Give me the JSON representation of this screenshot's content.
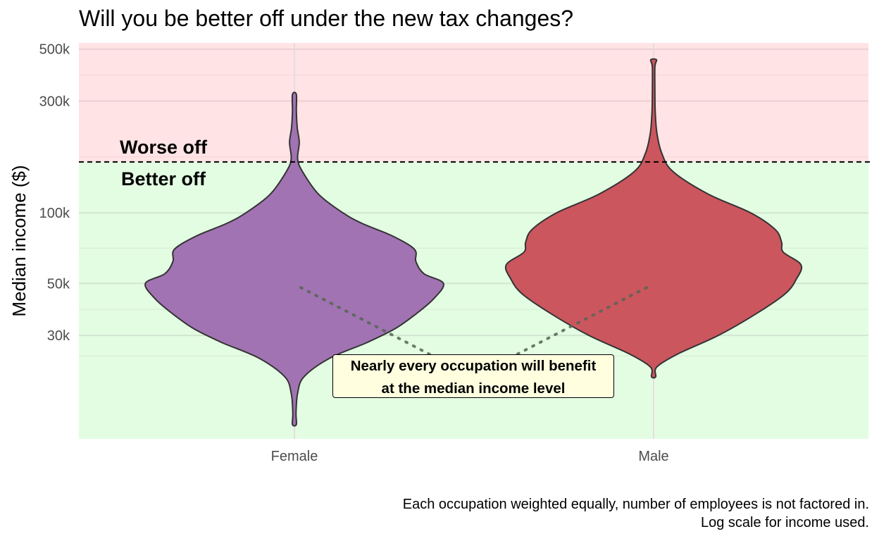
{
  "title": "Will you be better off under the new tax changes?",
  "caption": {
    "line1": "Each occupation weighted equally, number of employees is not factored in.",
    "line2": "Log scale for income used."
  },
  "annotation": {
    "line1": "Nearly every occupation will benefit",
    "line2": "at the median income level"
  },
  "region_labels": {
    "worse": "Worse off",
    "better": "Better off"
  },
  "colors": {
    "worse_region": "#ffe3e5",
    "better_region": "#e3fde3",
    "female": "#a173b2",
    "male": "#cb565e",
    "outline": "#333333",
    "dotted_line": "#556655"
  },
  "chart_data": {
    "type": "violin",
    "title": "Will you be better off under the new tax changes?",
    "xlabel": "",
    "ylabel": "Median income ($)",
    "y_scale": "log",
    "ylim": [
      12000,
      520000
    ],
    "y_ticks": [
      {
        "value": 30000,
        "label": "30k"
      },
      {
        "value": 50000,
        "label": "50k"
      },
      {
        "value": 100000,
        "label": "100k"
      },
      {
        "value": 300000,
        "label": "300k"
      },
      {
        "value": 500000,
        "label": "500k"
      }
    ],
    "categories": [
      "Female",
      "Male"
    ],
    "threshold": 165000,
    "median_points": {
      "Female": 48000,
      "Male": 48000
    },
    "grid": true,
    "series": [
      {
        "category": "Female",
        "min": 12500,
        "max": 320000,
        "density": [
          [
            12500,
            0.012
          ],
          [
            14000,
            0.01
          ],
          [
            17000,
            0.02
          ],
          [
            20000,
            0.06
          ],
          [
            24000,
            0.22
          ],
          [
            28000,
            0.45
          ],
          [
            32000,
            0.62
          ],
          [
            37000,
            0.75
          ],
          [
            43000,
            0.86
          ],
          [
            50000,
            0.92
          ],
          [
            55000,
            0.8
          ],
          [
            62000,
            0.75
          ],
          [
            70000,
            0.74
          ],
          [
            80000,
            0.6
          ],
          [
            90000,
            0.42
          ],
          [
            100000,
            0.3
          ],
          [
            120000,
            0.15
          ],
          [
            150000,
            0.05
          ],
          [
            170000,
            0.02
          ],
          [
            200000,
            0.03
          ],
          [
            230000,
            0.018
          ],
          [
            270000,
            0.012
          ],
          [
            320000,
            0.012
          ]
        ]
      },
      {
        "category": "Male",
        "min": 20000,
        "max": 450000,
        "density": [
          [
            20000,
            0.013
          ],
          [
            22000,
            0.02
          ],
          [
            25000,
            0.15
          ],
          [
            30000,
            0.4
          ],
          [
            37000,
            0.63
          ],
          [
            45000,
            0.81
          ],
          [
            52000,
            0.88
          ],
          [
            60000,
            0.91
          ],
          [
            68000,
            0.8
          ],
          [
            75000,
            0.79
          ],
          [
            85000,
            0.75
          ],
          [
            100000,
            0.6
          ],
          [
            120000,
            0.34
          ],
          [
            150000,
            0.12
          ],
          [
            180000,
            0.05
          ],
          [
            220000,
            0.02
          ],
          [
            270000,
            0.01
          ],
          [
            330000,
            0.008
          ],
          [
            420000,
            0.008
          ],
          [
            450000,
            0.018
          ]
        ]
      }
    ]
  }
}
